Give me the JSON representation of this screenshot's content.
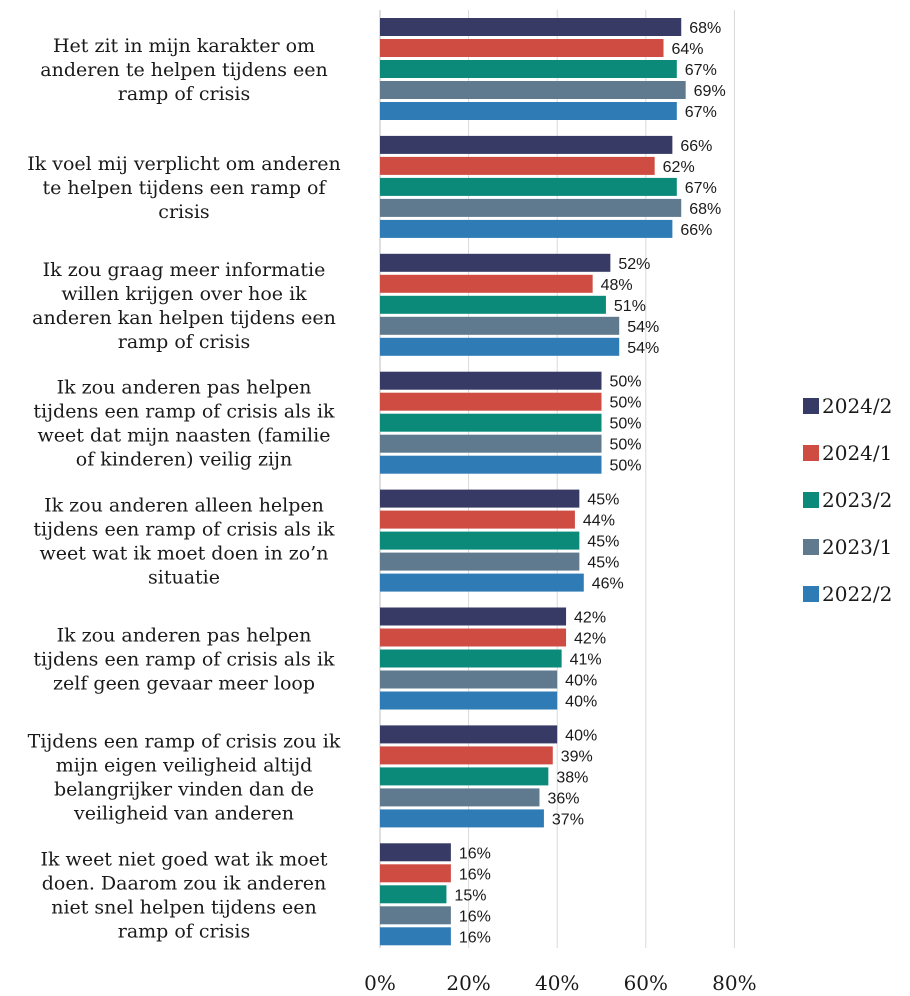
{
  "chart_data": {
    "type": "bar",
    "orientation": "horizontal",
    "xlim": [
      0,
      80
    ],
    "x_ticks": [
      0,
      20,
      40,
      60,
      80
    ],
    "x_tick_labels": [
      "0%",
      "20%",
      "40%",
      "60%",
      "80%"
    ],
    "grid": true,
    "legend_position": "right",
    "value_suffix": "%",
    "categories": [
      [
        "Het zit in mijn karakter om",
        "anderen te helpen tijdens een",
        "ramp of crisis"
      ],
      [
        "Ik voel mij verplicht om anderen",
        "te helpen tijdens een ramp of",
        "crisis"
      ],
      [
        "Ik zou graag meer informatie",
        "willen krijgen over hoe ik",
        "anderen kan helpen tijdens een",
        "ramp of crisis"
      ],
      [
        "Ik zou anderen pas helpen",
        "tijdens een ramp of crisis als ik",
        "weet dat mijn naasten (familie",
        "of kinderen) veilig zijn"
      ],
      [
        "Ik zou anderen alleen helpen",
        "tijdens een ramp of crisis als ik",
        "weet wat ik moet doen in zo’n",
        "situatie"
      ],
      [
        "Ik zou anderen pas helpen",
        "tijdens een ramp of crisis als ik",
        "zelf geen gevaar meer loop"
      ],
      [
        "Tijdens een ramp of crisis zou ik",
        "mijn eigen veiligheid altijd",
        "belangrijker vinden dan de",
        "veiligheid van anderen"
      ],
      [
        "Ik weet niet goed wat ik moet",
        "doen. Daarom zou ik anderen",
        "niet snel helpen tijdens een",
        "ramp of crisis"
      ]
    ],
    "series": [
      {
        "name": "2024/2",
        "color": "#363a64",
        "values": [
          68,
          66,
          52,
          50,
          45,
          42,
          40,
          16
        ]
      },
      {
        "name": "2024/1",
        "color": "#cf4c43",
        "values": [
          64,
          62,
          48,
          50,
          44,
          42,
          39,
          16
        ]
      },
      {
        "name": "2023/2",
        "color": "#0b8a7a",
        "values": [
          67,
          67,
          51,
          50,
          45,
          41,
          38,
          15
        ]
      },
      {
        "name": "2023/1",
        "color": "#5f7a8f",
        "values": [
          69,
          68,
          54,
          50,
          45,
          40,
          36,
          16
        ]
      },
      {
        "name": "2022/2",
        "color": "#2e7bb5",
        "values": [
          67,
          66,
          54,
          50,
          46,
          40,
          37,
          16
        ]
      }
    ]
  }
}
